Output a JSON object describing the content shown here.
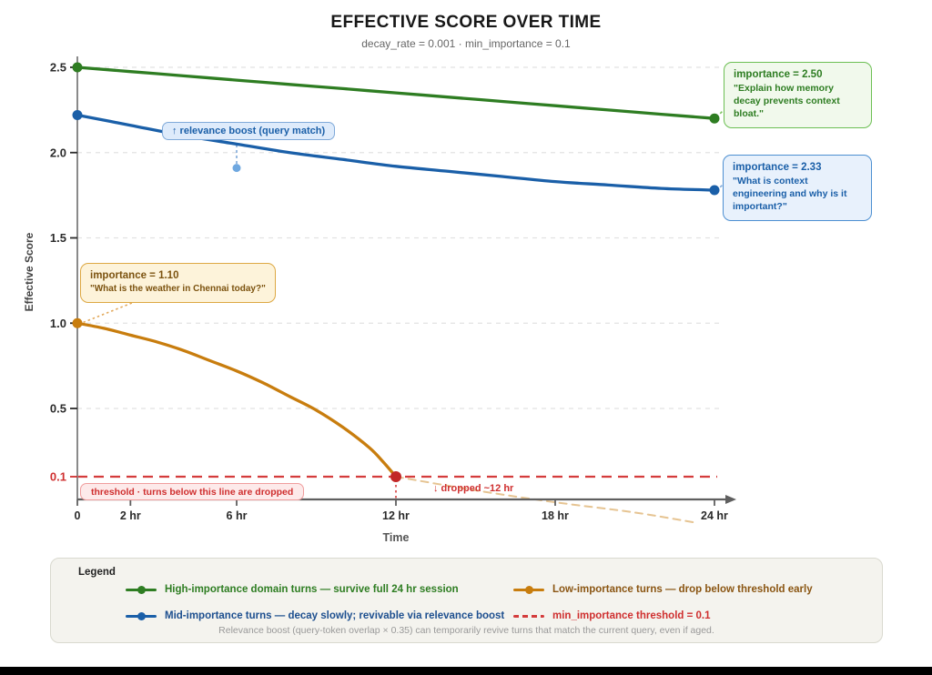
{
  "chart_data": {
    "type": "line",
    "title": "EFFECTIVE SCORE OVER TIME",
    "subtitle": "decay_rate = 0.001 · min_importance = 0.1",
    "xlabel": "Time",
    "ylabel": "Effective Score",
    "xlim_hours": [
      0,
      24
    ],
    "ylim": [
      0,
      2.6
    ],
    "grid": "horizontal dashed gridlines",
    "x_ticks": [
      {
        "t": 0,
        "label": "0"
      },
      {
        "t": 2,
        "label": "2 hr"
      },
      {
        "t": 6,
        "label": "6 hr"
      },
      {
        "t": 12,
        "label": "12 hr"
      },
      {
        "t": 18,
        "label": "18 hr"
      },
      {
        "t": 24,
        "label": "24 hr"
      }
    ],
    "y_ticks": [
      {
        "v": 2.5,
        "label": "2.5",
        "color": "#2b2b2b"
      },
      {
        "v": 2.0,
        "label": "2.0",
        "color": "#2b2b2b"
      },
      {
        "v": 1.5,
        "label": "1.5",
        "color": "#2b2b2b"
      },
      {
        "v": 1.0,
        "label": "1.0",
        "color": "#2b2b2b"
      },
      {
        "v": 0.5,
        "label": "0.5",
        "color": "#2b2b2b"
      },
      {
        "v": 0.1,
        "label": "0.1",
        "color": "#cf2f2f"
      }
    ],
    "threshold": {
      "value": 0.1,
      "color": "#d43c3c",
      "style": "dashed"
    },
    "series": [
      {
        "id": "high",
        "name": "High-importance domain turns — survive full 24 hr session",
        "importance": 2.5,
        "color": "#2e7d22",
        "style": "solid",
        "points": [
          [
            0,
            2.5
          ],
          [
            2,
            2.475
          ],
          [
            4,
            2.45
          ],
          [
            6,
            2.425
          ],
          [
            8,
            2.4
          ],
          [
            10,
            2.375
          ],
          [
            12,
            2.35
          ],
          [
            14,
            2.325
          ],
          [
            16,
            2.3
          ],
          [
            18,
            2.275
          ],
          [
            20,
            2.25
          ],
          [
            22,
            2.225
          ],
          [
            24,
            2.2
          ]
        ],
        "markers": [
          {
            "t": 0,
            "v": 2.5
          },
          {
            "t": 24,
            "v": 2.2
          }
        ]
      },
      {
        "id": "mid",
        "name": "Mid-importance turns — decay slowly; revivable via relevance boost",
        "importance": 2.33,
        "color": "#1a5fa8",
        "style": "solid",
        "points": [
          [
            0,
            2.22
          ],
          [
            2,
            2.16
          ],
          [
            4,
            2.1
          ],
          [
            6,
            2.05
          ],
          [
            8,
            2.0
          ],
          [
            10,
            1.96
          ],
          [
            12,
            1.92
          ],
          [
            14,
            1.89
          ],
          [
            16,
            1.86
          ],
          [
            18,
            1.83
          ],
          [
            20,
            1.81
          ],
          [
            22,
            1.79
          ],
          [
            24,
            1.78
          ]
        ],
        "markers": [
          {
            "t": 0,
            "v": 2.22
          },
          {
            "t": 24,
            "v": 1.78
          }
        ]
      },
      {
        "id": "low",
        "name": "Low-importance turns — drop below threshold early",
        "importance": 1.1,
        "color": "#c87d0e",
        "style": "solid",
        "drop_time_hours": 12,
        "points": [
          [
            0,
            1.0
          ],
          [
            1,
            0.97
          ],
          [
            2,
            0.93
          ],
          [
            3,
            0.89
          ],
          [
            4,
            0.84
          ],
          [
            5,
            0.78
          ],
          [
            6,
            0.72
          ],
          [
            7,
            0.65
          ],
          [
            8,
            0.57
          ],
          [
            9,
            0.49
          ],
          [
            10,
            0.39
          ],
          [
            11,
            0.27
          ],
          [
            11.5,
            0.19
          ],
          [
            12,
            0.1
          ]
        ],
        "markers": [
          {
            "t": 0,
            "v": 1.0
          },
          {
            "t": 12,
            "v": 0.1,
            "color": "#c22727",
            "r": 6
          }
        ]
      },
      {
        "id": "dropped-projection",
        "name": "projection of low-importance turn after drop",
        "color": "#e6c492",
        "style": "dashed",
        "points": [
          [
            12,
            0.1
          ],
          [
            15,
            0.02
          ],
          [
            18,
            -0.05
          ],
          [
            21,
            -0.11
          ],
          [
            23.3,
            -0.17
          ]
        ],
        "markers": []
      }
    ],
    "ghost_point": {
      "t": 6,
      "v": 1.91,
      "color": "#6fa8e0"
    }
  },
  "annotations": {
    "green_callout": {
      "title": "importance = 2.50",
      "quote": "\"Explain how memory decay prevents context bloat.\"",
      "bg": "#f1f9ec",
      "border": "#6cbf53",
      "text_color": "#2e7d22"
    },
    "blue_callout": {
      "title": "importance = 2.33",
      "quote": "\"What is context engineering and why is it important?\"",
      "bg": "#e8f1fc",
      "border": "#4d8fd1",
      "text_color": "#1a5fa8"
    },
    "orange_callout": {
      "title": "importance = 1.10",
      "quote": "\"What is the weather in Chennai today?\"",
      "bg": "#fdf3da",
      "border": "#dda843",
      "text_color": "#7c5310"
    },
    "boost_tooltip": {
      "label": "↑ relevance boost (query match)",
      "bg": "#deebfb",
      "border": "#7fa9d9",
      "text_color": "#1a5fa8"
    },
    "threshold_pill": {
      "label": "threshold · turns below this line are dropped",
      "bg": "#fdeaea",
      "border": "#f09d9d",
      "text_color": "#cf2f2f"
    },
    "dropped_label": {
      "label": "↓ dropped ~12 hr",
      "text_color": "#cf2f2f"
    }
  },
  "legend": {
    "title": "Legend",
    "items": [
      {
        "label": "High-importance domain turns — survive full 24 hr session",
        "line_color": "#2e7d22",
        "text_color": "#2e7d22",
        "swatch": "line-dot"
      },
      {
        "label": "Mid-importance turns — decay slowly; revivable via relevance boost",
        "line_color": "#1a5fa8",
        "text_color": "#1d4f8f",
        "swatch": "line-dot"
      },
      {
        "label": "Low-importance turns — drop below threshold early",
        "line_color": "#c87d0e",
        "text_color": "#8a5512",
        "swatch": "line-dot"
      },
      {
        "label": "min_importance threshold = 0.1",
        "line_color": "#d43c3c",
        "text_color": "#cf2f2f",
        "swatch": "dashes"
      }
    ],
    "footnote": "Relevance boost (query-token overlap × 0.35) can temporarily revive turns that match the current query, even if aged."
  },
  "page": {
    "background": "#ffffff",
    "footer_bar_color": "#000000"
  }
}
